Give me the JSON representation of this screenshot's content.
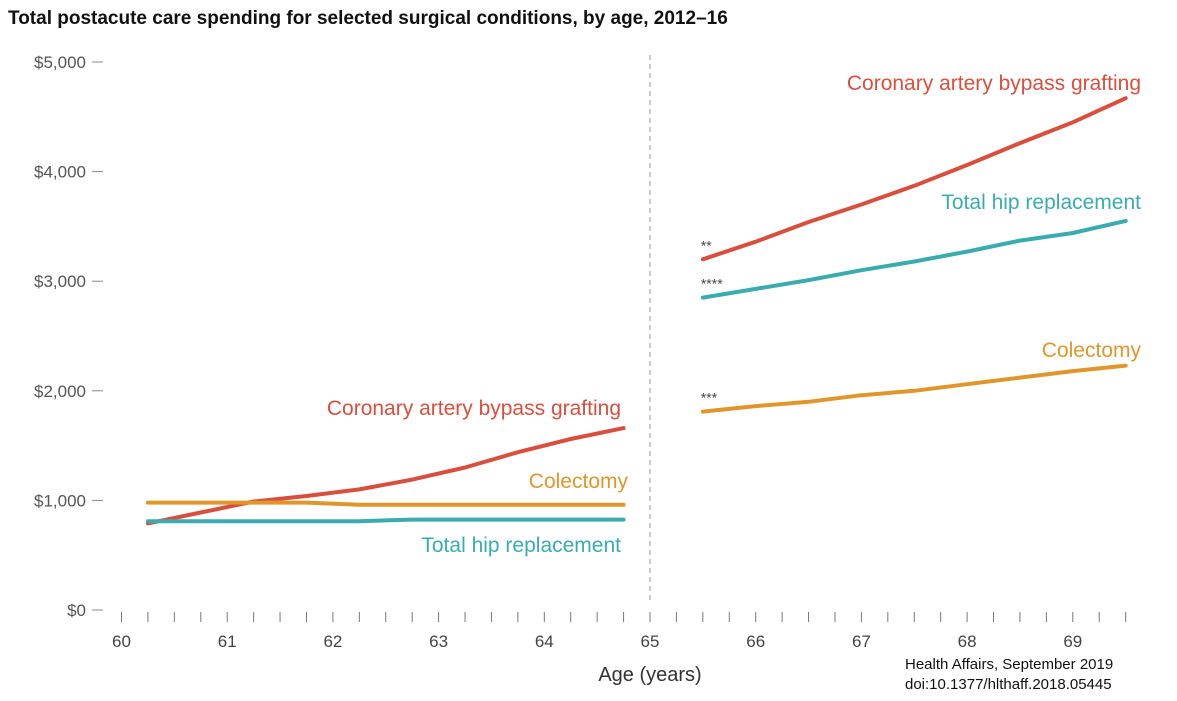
{
  "chart_data": {
    "type": "line",
    "title": "Total postacute care spending for selected surgical conditions, by age, 2012–16",
    "xlabel": "Age (years)",
    "ylabel": "",
    "ylim": [
      0,
      5000
    ],
    "xlim": [
      60,
      70
    ],
    "y_ticks": [
      0,
      1000,
      2000,
      3000,
      4000,
      5000
    ],
    "y_tick_labels": [
      "$0",
      "$1,000",
      "$2,000",
      "$3,000",
      "$4,000",
      "$5,000"
    ],
    "x_ticks": [
      60,
      61,
      62,
      63,
      64,
      65,
      66,
      67,
      68,
      69
    ],
    "x_tick_labels": [
      "60",
      "61",
      "62",
      "63",
      "64",
      "65",
      "66",
      "67",
      "68",
      "69"
    ],
    "minor_x_step": 0.25,
    "discontinuity_at": 65,
    "series": [
      {
        "name": "Coronary artery bypass grafting",
        "color": "#d94f3d",
        "segments": [
          {
            "x": [
              60.25,
              60.75,
              61.25,
              61.75,
              62.25,
              62.75,
              63.25,
              63.75,
              64.25,
              64.75
            ],
            "y": [
              790,
              890,
              990,
              1040,
              1100,
              1190,
              1300,
              1440,
              1560,
              1660
            ]
          },
          {
            "x": [
              65.5,
              66,
              66.5,
              67,
              67.5,
              68,
              68.5,
              69,
              69.5
            ],
            "y": [
              3200,
              3360,
              3540,
              3700,
              3870,
              4060,
              4260,
              4450,
              4670
            ]
          }
        ],
        "annotation": "**"
      },
      {
        "name": "Total hip replacement",
        "color": "#3aacb0",
        "segments": [
          {
            "x": [
              60.25,
              60.75,
              61.25,
              61.75,
              62.25,
              62.75,
              63.25,
              63.75,
              64.25,
              64.75
            ],
            "y": [
              810,
              810,
              810,
              810,
              810,
              825,
              825,
              825,
              825,
              825
            ]
          },
          {
            "x": [
              65.5,
              66,
              66.5,
              67,
              67.5,
              68,
              68.5,
              69,
              69.5
            ],
            "y": [
              2850,
              2930,
              3010,
              3100,
              3180,
              3270,
              3370,
              3440,
              3550
            ]
          }
        ],
        "annotation": "****"
      },
      {
        "name": "Colectomy",
        "color": "#e0962b",
        "segments": [
          {
            "x": [
              60.25,
              60.75,
              61.25,
              61.75,
              62.25,
              62.75,
              63.25,
              63.75,
              64.25,
              64.75
            ],
            "y": [
              980,
              980,
              980,
              980,
              960,
              960,
              960,
              960,
              960,
              960
            ]
          },
          {
            "x": [
              65.5,
              66,
              66.5,
              67,
              67.5,
              68,
              68.5,
              69,
              69.5
            ],
            "y": [
              1810,
              1860,
              1900,
              1960,
              2000,
              2060,
              2120,
              2180,
              2230
            ]
          }
        ],
        "annotation": "***"
      }
    ],
    "labels": [
      {
        "text": "Coronary artery bypass grafting",
        "series": 0,
        "segment": 0
      },
      {
        "text": "Colectomy",
        "series": 2,
        "segment": 0
      },
      {
        "text": "Total hip replacement",
        "series": 1,
        "segment": 0
      },
      {
        "text": "Coronary artery bypass grafting",
        "series": 0,
        "segment": 1
      },
      {
        "text": "Total hip replacement",
        "series": 1,
        "segment": 1
      },
      {
        "text": "Colectomy",
        "series": 2,
        "segment": 1
      }
    ]
  },
  "credit": {
    "line1": "Health Affairs, September 2019",
    "line2": "doi:10.1377/hlthaff.2018.05445"
  }
}
